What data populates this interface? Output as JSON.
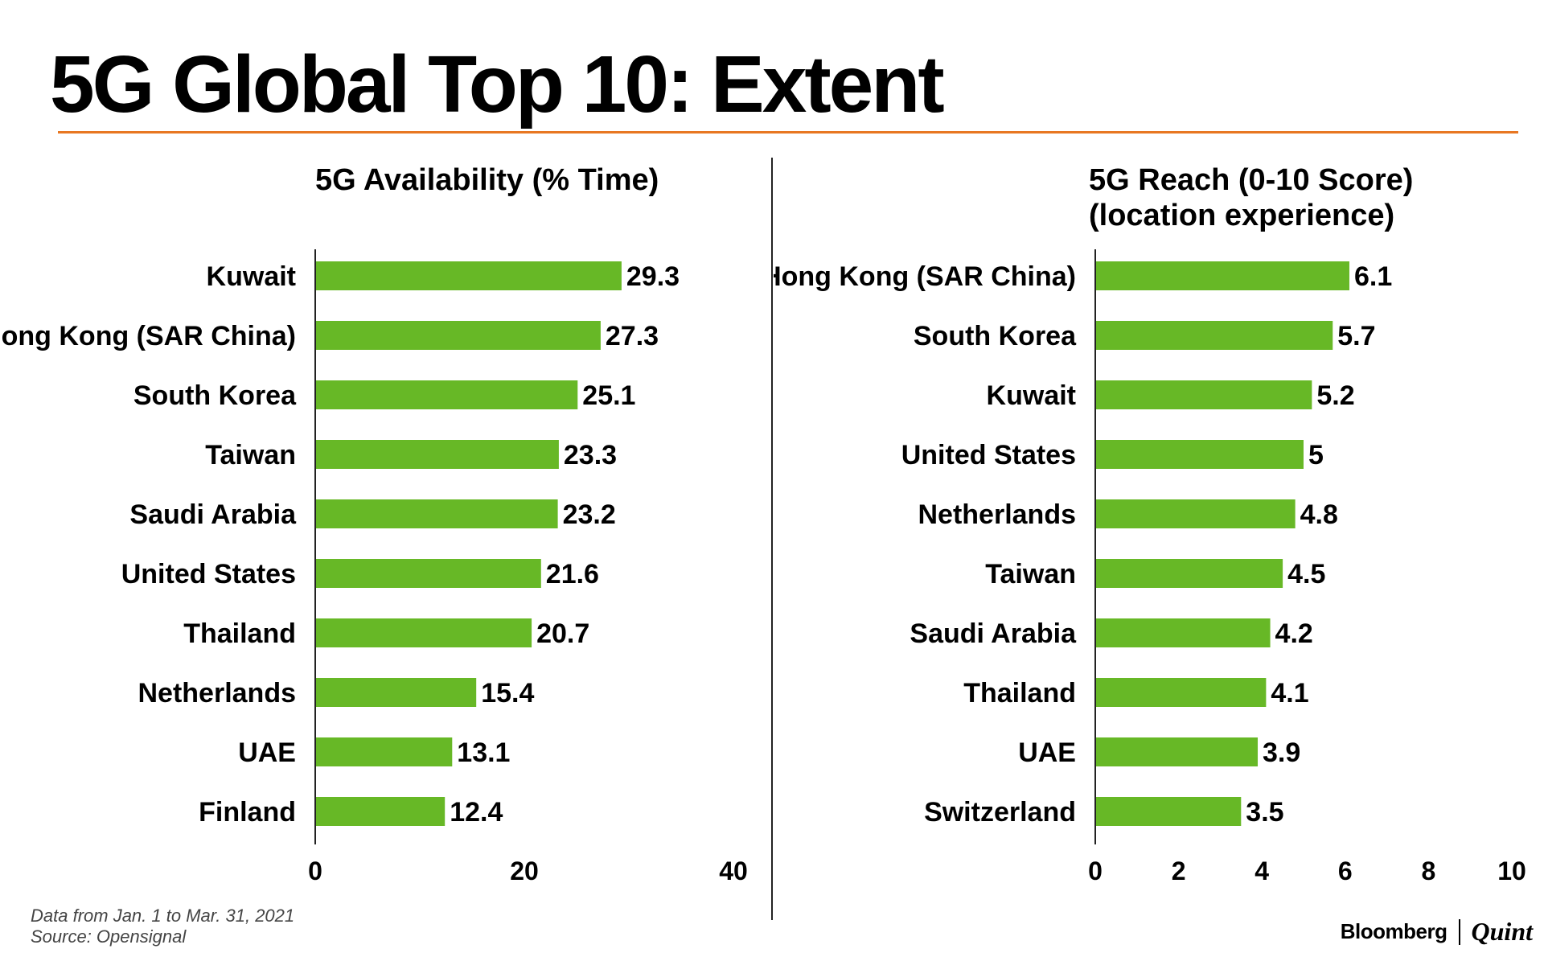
{
  "title": "5G Global Top 10: Extent",
  "colors": {
    "bar": "#67b826",
    "accent_rule": "#e87722",
    "text": "#000000"
  },
  "footer": {
    "data_note": "Data from Jan. 1 to Mar. 31, 2021",
    "source": "Source: Opensignal"
  },
  "branding": {
    "left": "Bloomberg",
    "right": "Quint"
  },
  "chart_data": [
    {
      "type": "bar",
      "orientation": "horizontal",
      "title": "5G Availability (% Time)",
      "categories": [
        "Kuwait",
        "Hong Kong (SAR China)",
        "South Korea",
        "Taiwan",
        "Saudi Arabia",
        "United States",
        "Thailand",
        "Netherlands",
        "UAE",
        "Finland"
      ],
      "values": [
        29.3,
        27.3,
        25.1,
        23.3,
        23.2,
        21.6,
        20.7,
        15.4,
        13.1,
        12.4
      ],
      "value_labels": [
        "29.3",
        "27.3",
        "25.1",
        "23.3",
        "23.2",
        "21.6",
        "20.7",
        "15.4",
        "13.1",
        "12.4"
      ],
      "xlim": [
        0,
        40
      ],
      "ticks": [
        0,
        20,
        40
      ],
      "tick_labels": [
        "0",
        "20",
        "40"
      ],
      "xlabel": "",
      "ylabel": "",
      "grid": false,
      "legend": "none"
    },
    {
      "type": "bar",
      "orientation": "horizontal",
      "title": "5G Reach (0-10 Score) (location experience)",
      "title_lines": [
        "5G Reach (0-10 Score)",
        "(location experience)"
      ],
      "categories": [
        "Hong Kong (SAR China)",
        "South Korea",
        "Kuwait",
        "United States",
        "Netherlands",
        "Taiwan",
        "Saudi Arabia",
        "Thailand",
        "UAE",
        "Switzerland"
      ],
      "values": [
        6.1,
        5.7,
        5.2,
        5,
        4.8,
        4.5,
        4.2,
        4.1,
        3.9,
        3.5
      ],
      "value_labels": [
        "6.1",
        "5.7",
        "5.2",
        "5",
        "4.8",
        "4.5",
        "4.2",
        "4.1",
        "3.9",
        "3.5"
      ],
      "xlim": [
        0,
        10
      ],
      "ticks": [
        0,
        2,
        4,
        6,
        8,
        10
      ],
      "tick_labels": [
        "0",
        "2",
        "4",
        "6",
        "8",
        "10"
      ],
      "xlabel": "",
      "ylabel": "",
      "grid": false,
      "legend": "none"
    }
  ]
}
